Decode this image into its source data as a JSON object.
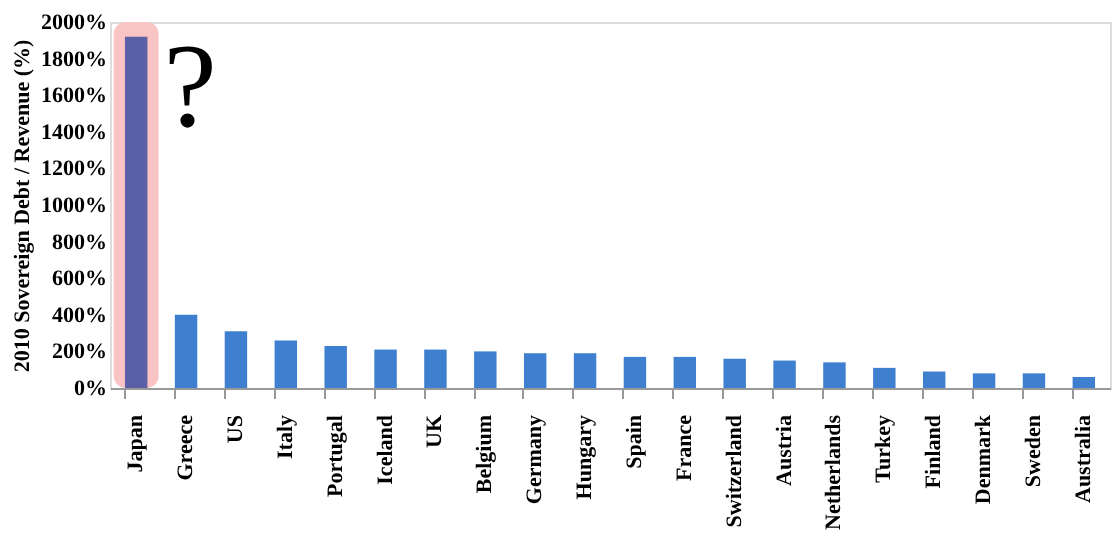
{
  "chart_data": {
    "type": "bar",
    "ylabel": "2010 Sovereign Debt / Revenue (%)",
    "categories": [
      "Japan",
      "Greece",
      "US",
      "Italy",
      "Portugal",
      "Iceland",
      "UK",
      "Belgium",
      "Germany",
      "Hungary",
      "Spain",
      "France",
      "Switzerland",
      "Austria",
      "Netherlands",
      "Turkey",
      "Finland",
      "Denmark",
      "Sweden",
      "Australia"
    ],
    "values": [
      1920,
      400,
      310,
      260,
      230,
      210,
      210,
      200,
      190,
      190,
      170,
      170,
      160,
      150,
      140,
      110,
      90,
      80,
      80,
      60
    ],
    "colors": [
      "#5b5fa6",
      "#3f7fcf",
      "#3f7fcf",
      "#3f7fcf",
      "#3f7fcf",
      "#3f7fcf",
      "#3f7fcf",
      "#3f7fcf",
      "#3f7fcf",
      "#3f7fcf",
      "#3f7fcf",
      "#3f7fcf",
      "#3f7fcf",
      "#3f7fcf",
      "#3f7fcf",
      "#3f7fcf",
      "#3f7fcf",
      "#3f7fcf",
      "#3f7fcf",
      "#3f7fcf"
    ],
    "ylim": [
      0,
      2000
    ],
    "yticks": [
      {
        "value": 0,
        "label": "0%"
      },
      {
        "value": 200,
        "label": "200%"
      },
      {
        "value": 400,
        "label": "400%"
      },
      {
        "value": 600,
        "label": "600%"
      },
      {
        "value": 800,
        "label": "800%"
      },
      {
        "value": 1000,
        "label": "1000%"
      },
      {
        "value": 1200,
        "label": "1200%"
      },
      {
        "value": 1400,
        "label": "1400%"
      },
      {
        "value": 1600,
        "label": "1600%"
      },
      {
        "value": 1800,
        "label": "1800%"
      },
      {
        "value": 2000,
        "label": "2000%"
      }
    ],
    "bands": [
      {
        "axis": "x",
        "from": "Japan",
        "to": "Japan",
        "color": "#f9c4c4"
      }
    ],
    "annotations": [
      "?"
    ],
    "grid": false
  }
}
